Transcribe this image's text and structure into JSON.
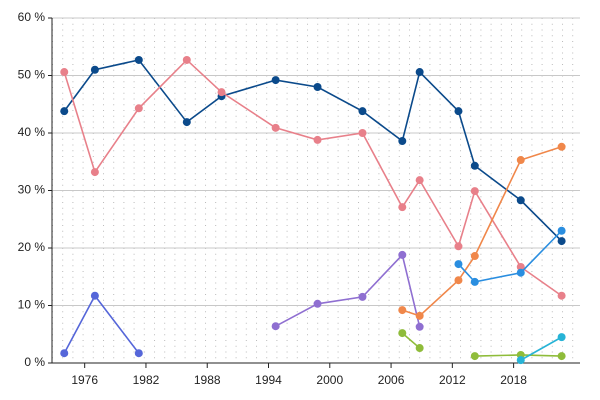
{
  "chart_data": {
    "type": "line",
    "x": [
      1974,
      1977,
      1981.3,
      1986,
      1989.4,
      1994.7,
      1998.8,
      2003.2,
      2007.1,
      2008.8,
      2012.6,
      2014.2,
      2018.7,
      2022.7
    ],
    "xlim": [
      1972.8,
      2024.5
    ],
    "xticks": [
      1976,
      1982,
      1988,
      1994,
      2000,
      2006,
      2012,
      2018
    ],
    "ylim": [
      0,
      60
    ],
    "yticks": [
      {
        "value": 0,
        "label": "0 %"
      },
      {
        "value": 10,
        "label": "10 %"
      },
      {
        "value": 20,
        "label": "20 %"
      },
      {
        "value": 30,
        "label": "30 %"
      },
      {
        "value": 40,
        "label": "40 %"
      },
      {
        "value": 50,
        "label": "50 %"
      },
      {
        "value": 60,
        "label": "60 %"
      }
    ],
    "grid": true,
    "series": [
      {
        "color": "#0b4a8b",
        "values": [
          43.8,
          51.0,
          52.7,
          41.9,
          46.4,
          49.2,
          48.0,
          43.8,
          38.6,
          50.6,
          43.8,
          34.3,
          28.3,
          21.2
        ]
      },
      {
        "color": "#e8808a",
        "values": [
          50.6,
          33.2,
          44.3,
          52.7,
          47.1,
          40.9,
          38.8,
          40.0,
          27.1,
          31.8,
          20.3,
          29.9,
          16.7,
          11.7
        ]
      },
      {
        "color": "#5566d9",
        "values": [
          1.7,
          11.7,
          1.7,
          null,
          null,
          null,
          null,
          null,
          null,
          null,
          null,
          null,
          null,
          null
        ]
      },
      {
        "color": "#8f6fd1",
        "values": [
          null,
          null,
          null,
          null,
          null,
          6.4,
          10.3,
          11.5,
          18.8,
          6.3,
          null,
          null,
          null,
          null
        ]
      },
      {
        "color": "#f0874a",
        "values": [
          null,
          null,
          null,
          null,
          null,
          null,
          null,
          null,
          9.2,
          8.2,
          14.4,
          18.6,
          35.3,
          37.6
        ]
      },
      {
        "color": "#8fbc3a",
        "values": [
          null,
          null,
          null,
          null,
          null,
          null,
          null,
          null,
          5.2,
          2.6,
          null,
          1.2,
          1.4,
          1.2
        ]
      },
      {
        "color": "#2a8ee0",
        "values": [
          null,
          null,
          null,
          null,
          null,
          null,
          null,
          null,
          null,
          null,
          17.2,
          14.1,
          15.7,
          23.0
        ]
      },
      {
        "color": "#27b3d6",
        "values": [
          null,
          null,
          null,
          null,
          null,
          null,
          null,
          null,
          null,
          null,
          null,
          null,
          0.5,
          4.5
        ]
      }
    ]
  }
}
